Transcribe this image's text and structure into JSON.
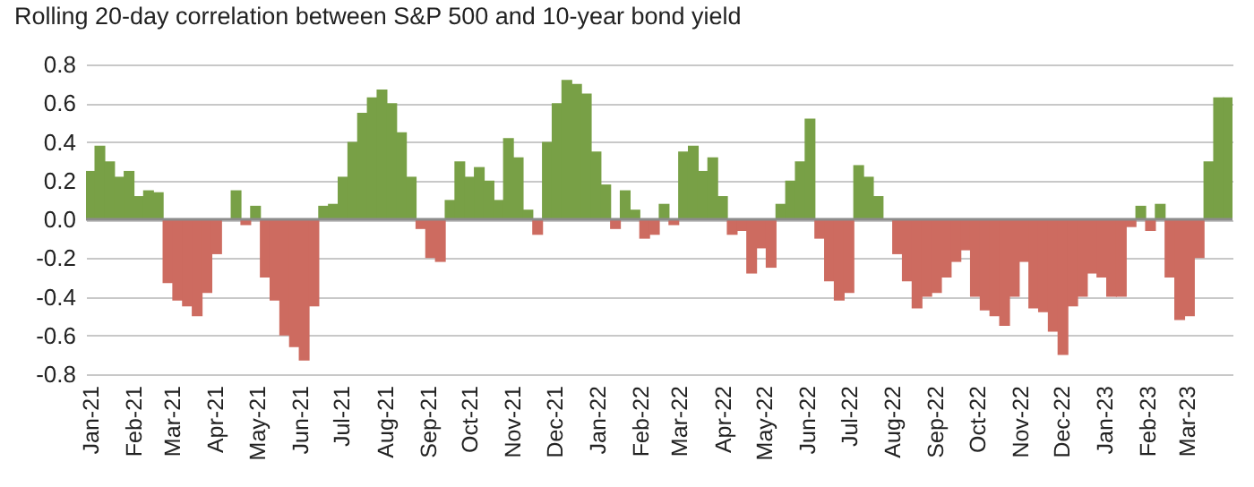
{
  "chart_data": {
    "type": "bar",
    "title": "Rolling 20-day correlation between S&P 500 and 10-year bond yield",
    "x": [
      "2021-01-01",
      "2021-01-08",
      "2021-01-15",
      "2021-01-22",
      "2021-01-29",
      "2021-02-05",
      "2021-02-12",
      "2021-02-19",
      "2021-02-26",
      "2021-03-05",
      "2021-03-12",
      "2021-03-19",
      "2021-03-26",
      "2021-04-02",
      "2021-04-09",
      "2021-04-16",
      "2021-04-23",
      "2021-04-30",
      "2021-05-07",
      "2021-05-14",
      "2021-05-21",
      "2021-05-28",
      "2021-06-04",
      "2021-06-11",
      "2021-06-18",
      "2021-06-25",
      "2021-07-02",
      "2021-07-09",
      "2021-07-16",
      "2021-07-23",
      "2021-07-30",
      "2021-08-06",
      "2021-08-13",
      "2021-08-20",
      "2021-08-27",
      "2021-09-03",
      "2021-09-10",
      "2021-09-17",
      "2021-09-24",
      "2021-10-01",
      "2021-10-08",
      "2021-10-15",
      "2021-10-22",
      "2021-10-29",
      "2021-11-05",
      "2021-11-12",
      "2021-11-19",
      "2021-11-26",
      "2021-12-03",
      "2021-12-10",
      "2021-12-17",
      "2021-12-24",
      "2021-12-31",
      "2022-01-07",
      "2022-01-14",
      "2022-01-21",
      "2022-01-28",
      "2022-02-04",
      "2022-02-11",
      "2022-02-18",
      "2022-02-25",
      "2022-03-04",
      "2022-03-11",
      "2022-03-18",
      "2022-03-25",
      "2022-04-01",
      "2022-04-08",
      "2022-04-15",
      "2022-04-22",
      "2022-04-29",
      "2022-05-06",
      "2022-05-13",
      "2022-05-20",
      "2022-05-27",
      "2022-06-03",
      "2022-06-10",
      "2022-06-17",
      "2022-06-24",
      "2022-07-01",
      "2022-07-08",
      "2022-07-15",
      "2022-07-22",
      "2022-07-29",
      "2022-08-05",
      "2022-08-12",
      "2022-08-19",
      "2022-08-26",
      "2022-09-02",
      "2022-09-09",
      "2022-09-16",
      "2022-09-23",
      "2022-09-30",
      "2022-10-07",
      "2022-10-14",
      "2022-10-21",
      "2022-10-28",
      "2022-11-04",
      "2022-11-11",
      "2022-11-18",
      "2022-11-25",
      "2022-12-02",
      "2022-12-09",
      "2022-12-16",
      "2022-12-23",
      "2022-12-30",
      "2023-01-06",
      "2023-01-13",
      "2023-01-20",
      "2023-01-27",
      "2023-02-03",
      "2023-02-10",
      "2023-02-17",
      "2023-02-24",
      "2023-03-03",
      "2023-03-10",
      "2023-03-17",
      "2023-03-24",
      "2023-03-31"
    ],
    "values": [
      0.25,
      0.38,
      0.3,
      0.22,
      0.25,
      0.12,
      0.15,
      0.14,
      -0.33,
      -0.42,
      -0.45,
      -0.5,
      -0.38,
      -0.18,
      0,
      0.15,
      -0.03,
      0.07,
      -0.3,
      -0.42,
      -0.6,
      -0.66,
      -0.73,
      -0.45,
      0.07,
      0.08,
      0.22,
      0.4,
      0.55,
      0.63,
      0.67,
      0.6,
      0.45,
      0.22,
      -0.05,
      -0.2,
      -0.22,
      0.1,
      0.3,
      0.22,
      0.27,
      0.2,
      0.1,
      0.42,
      0.32,
      0.05,
      -0.08,
      0.4,
      0.6,
      0.72,
      0.7,
      0.65,
      0.35,
      0.18,
      -0.05,
      0.15,
      0.05,
      -0.1,
      -0.08,
      0.08,
      -0.03,
      0.35,
      0.38,
      0.25,
      0.32,
      0.12,
      -0.08,
      -0.06,
      -0.28,
      -0.15,
      -0.25,
      0.08,
      0.2,
      0.3,
      0.52,
      -0.1,
      -0.32,
      -0.42,
      -0.38,
      0.28,
      0.22,
      0.12,
      null,
      -0.18,
      -0.32,
      -0.46,
      -0.4,
      -0.38,
      -0.3,
      -0.22,
      -0.16,
      -0.4,
      -0.47,
      -0.5,
      -0.55,
      -0.4,
      -0.22,
      -0.46,
      -0.48,
      -0.58,
      -0.7,
      -0.45,
      -0.4,
      -0.28,
      -0.3,
      -0.4,
      -0.4,
      -0.04,
      0.07,
      -0.06,
      0.08,
      -0.3,
      -0.52,
      -0.5,
      -0.2,
      0.3,
      0.63,
      0.63
    ],
    "colors": [
      "#78a046",
      "#78a046",
      "#78a046",
      "#78a046",
      "#78a046",
      "#78a046",
      "#78a046",
      "#78a046",
      "#cd6b60",
      "#cd6b60",
      "#cd6b60",
      "#cd6b60",
      "#cd6b60",
      "#cd6b60",
      "#78a046",
      "#78a046",
      "#cd6b60",
      "#78a046",
      "#cd6b60",
      "#cd6b60",
      "#cd6b60",
      "#cd6b60",
      "#cd6b60",
      "#cd6b60",
      "#78a046",
      "#78a046",
      "#78a046",
      "#78a046",
      "#78a046",
      "#78a046",
      "#78a046",
      "#78a046",
      "#78a046",
      "#78a046",
      "#cd6b60",
      "#cd6b60",
      "#cd6b60",
      "#78a046",
      "#78a046",
      "#78a046",
      "#78a046",
      "#78a046",
      "#78a046",
      "#78a046",
      "#78a046",
      "#78a046",
      "#cd6b60",
      "#78a046",
      "#78a046",
      "#78a046",
      "#78a046",
      "#78a046",
      "#78a046",
      "#78a046",
      "#cd6b60",
      "#78a046",
      "#78a046",
      "#cd6b60",
      "#cd6b60",
      "#78a046",
      "#cd6b60",
      "#78a046",
      "#78a046",
      "#78a046",
      "#78a046",
      "#78a046",
      "#cd6b60",
      "#cd6b60",
      "#cd6b60",
      "#cd6b60",
      "#cd6b60",
      "#78a046",
      "#78a046",
      "#78a046",
      "#78a046",
      "#cd6b60",
      "#cd6b60",
      "#cd6b60",
      "#cd6b60",
      "#78a046",
      "#78a046",
      "#78a046",
      "#cd6b60",
      "#cd6b60",
      "#cd6b60",
      "#cd6b60",
      "#cd6b60",
      "#cd6b60",
      "#cd6b60",
      "#cd6b60",
      "#cd6b60",
      "#cd6b60",
      "#cd6b60",
      "#cd6b60",
      "#cd6b60",
      "#cd6b60",
      "#cd6b60",
      "#cd6b60",
      "#cd6b60",
      "#cd6b60",
      "#cd6b60",
      "#cd6b60",
      "#cd6b60",
      "#cd6b60",
      "#cd6b60",
      "#cd6b60",
      "#cd6b60",
      "#cd6b60",
      "#78a046",
      "#cd6b60",
      "#78a046",
      "#cd6b60",
      "#cd6b60",
      "#cd6b60",
      "#cd6b60",
      "#78a046",
      "#78a046",
      "#78a046"
    ],
    "xlim": [
      "2020-12-29",
      "2023-04-03"
    ],
    "xticks": [
      {
        "value": "2021-01-01",
        "label": "Jan-21"
      },
      {
        "value": "2021-02-01",
        "label": "Feb-21"
      },
      {
        "value": "2021-03-01",
        "label": "Mar-21"
      },
      {
        "value": "2021-04-01",
        "label": "Apr-21"
      },
      {
        "value": "2021-05-01",
        "label": "May-21"
      },
      {
        "value": "2021-06-01",
        "label": "Jun-21"
      },
      {
        "value": "2021-07-01",
        "label": "Jul-21"
      },
      {
        "value": "2021-08-01",
        "label": "Aug-21"
      },
      {
        "value": "2021-09-01",
        "label": "Sep-21"
      },
      {
        "value": "2021-10-01",
        "label": "Oct-21"
      },
      {
        "value": "2021-11-01",
        "label": "Nov-21"
      },
      {
        "value": "2021-12-01",
        "label": "Dec-21"
      },
      {
        "value": "2022-01-01",
        "label": "Jan-22"
      },
      {
        "value": "2022-02-01",
        "label": "Feb-22"
      },
      {
        "value": "2022-03-01",
        "label": "Mar-22"
      },
      {
        "value": "2022-04-01",
        "label": "Apr-22"
      },
      {
        "value": "2022-05-01",
        "label": "May-22"
      },
      {
        "value": "2022-06-01",
        "label": "Jun-22"
      },
      {
        "value": "2022-07-01",
        "label": "Jul-22"
      },
      {
        "value": "2022-08-01",
        "label": "Aug-22"
      },
      {
        "value": "2022-09-01",
        "label": "Sep-22"
      },
      {
        "value": "2022-10-01",
        "label": "Oct-22"
      },
      {
        "value": "2022-11-01",
        "label": "Nov-22"
      },
      {
        "value": "2022-12-01",
        "label": "Dec-22"
      },
      {
        "value": "2023-01-01",
        "label": "Jan-23"
      },
      {
        "value": "2023-02-01",
        "label": "Feb-23"
      },
      {
        "value": "2023-03-01",
        "label": "Mar-23"
      }
    ],
    "ylim": [
      -0.8,
      0.8
    ],
    "yticks": [
      -0.8,
      -0.6,
      -0.4,
      -0.2,
      {
        "value": 0,
        "label": "0.0"
      },
      0.2,
      0.4,
      0.6,
      0.8
    ],
    "grid": "y",
    "ref_lines": [
      {
        "axis": "y",
        "value": 0,
        "color": "#8c8c8c"
      }
    ]
  }
}
